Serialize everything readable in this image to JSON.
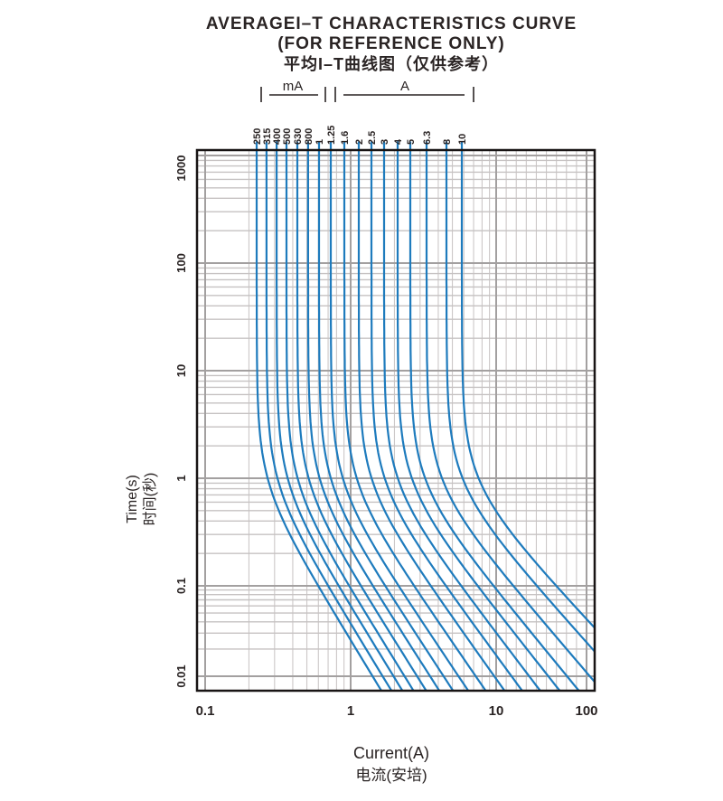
{
  "title": {
    "line1": "AVERAGEI–T CHARACTERISTICS CURVE",
    "line2": "(FOR REFERENCE ONLY)",
    "line3": "平均I–T曲线图（仅供参考）"
  },
  "unit_groups": [
    {
      "label": "mA"
    },
    {
      "label": "A"
    }
  ],
  "chart_data": {
    "type": "line",
    "title": "AVERAGEI–T CHARACTERISTICS CURVE (FOR REFERENCE ONLY)",
    "xlabel": "Current(A)",
    "xlabel_cn": "电流(安培)",
    "ylabel": "Time(s)",
    "ylabel_cn": "时间(秒)",
    "x_scale": "log",
    "y_scale": "log",
    "xlim": [
      0.1,
      100
    ],
    "ylim": [
      0.01,
      1000
    ],
    "x_tick_labels": [
      "0.1",
      "1",
      "10",
      "100"
    ],
    "y_tick_labels": [
      "1000",
      "100",
      "10",
      "1",
      "0.1",
      "0.01"
    ],
    "grid": "both-major-and-minor",
    "curve_color": "#1e7bbd",
    "series": [
      {
        "label": "250",
        "unit": "mA",
        "rating_A": 0.25,
        "asymptote_current_A": 0.226
      },
      {
        "label": "315",
        "unit": "mA",
        "rating_A": 0.315,
        "asymptote_current_A": 0.264
      },
      {
        "label": "400",
        "unit": "mA",
        "rating_A": 0.4,
        "asymptote_current_A": 0.31
      },
      {
        "label": "500",
        "unit": "mA",
        "rating_A": 0.5,
        "asymptote_current_A": 0.362
      },
      {
        "label": "630",
        "unit": "mA",
        "rating_A": 0.63,
        "asymptote_current_A": 0.43
      },
      {
        "label": "800",
        "unit": "mA",
        "rating_A": 0.8,
        "asymptote_current_A": 0.51
      },
      {
        "label": "1",
        "unit": "A",
        "rating_A": 1,
        "asymptote_current_A": 0.606
      },
      {
        "label": "1.25",
        "unit": "A",
        "rating_A": 1.25,
        "asymptote_current_A": 0.73
      },
      {
        "label": "1.6",
        "unit": "A",
        "rating_A": 1.6,
        "asymptote_current_A": 0.905
      },
      {
        "label": "2",
        "unit": "A",
        "rating_A": 2,
        "asymptote_current_A": 1.137
      },
      {
        "label": "2.5",
        "unit": "A",
        "rating_A": 2.5,
        "asymptote_current_A": 1.39
      },
      {
        "label": "3",
        "unit": "A",
        "rating_A": 3,
        "asymptote_current_A": 1.697
      },
      {
        "label": "4",
        "unit": "A",
        "rating_A": 4,
        "asymptote_current_A": 2.103
      },
      {
        "label": "5",
        "unit": "A",
        "rating_A": 5,
        "asymptote_current_A": 2.57
      },
      {
        "label": "6.3",
        "unit": "A",
        "rating_A": 6.3,
        "asymptote_current_A": 3.325
      },
      {
        "label": "8",
        "unit": "A",
        "rating_A": 8,
        "asymptote_current_A": 4.554
      },
      {
        "label": "10",
        "unit": "A",
        "rating_A": 10,
        "asymptote_current_A": 5.808
      }
    ],
    "curve_model": {
      "formula": "I(t) = I0 * (1 + (t0/t)^b)^a",
      "t0": 0.85,
      "b": 1.5,
      "a_min": 0.3,
      "a_max": 0.46
    }
  }
}
